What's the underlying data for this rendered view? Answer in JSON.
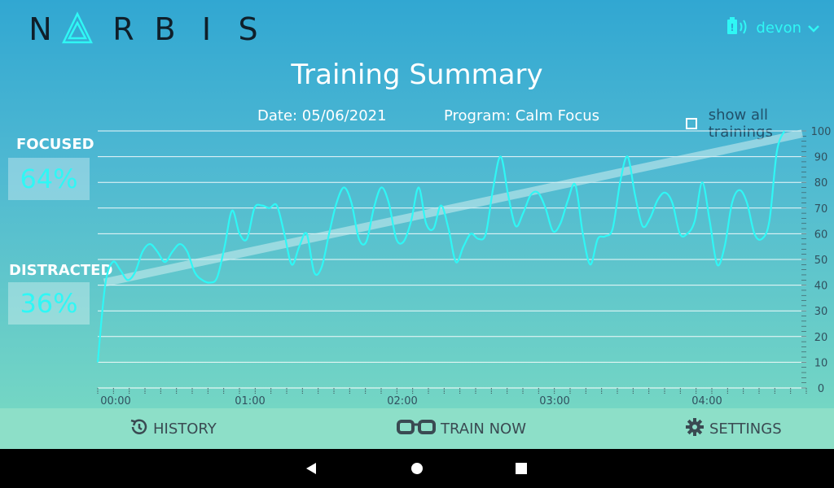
{
  "header": {
    "logo_letters": [
      "N",
      "Λ",
      "R",
      "B",
      "I",
      "S"
    ],
    "logo_text": "NΛRBIS",
    "username": "devon"
  },
  "title": "Training Summary",
  "meta": {
    "date": "Date: 05/06/2021",
    "program": "Program: Calm Focus",
    "show_all": "show all trainings",
    "show_all_checked": false
  },
  "stats": {
    "focused_label": "FOCUSED",
    "focused_value": "64%",
    "distracted_label": "DISTRACTED",
    "distracted_value": "36%"
  },
  "chart_data": {
    "type": "line",
    "y_ticks": [
      "100",
      "90",
      "80",
      "70",
      "60",
      "50",
      "40",
      "30",
      "20",
      "10",
      "0"
    ],
    "x_ticks": [
      "00:00",
      "01:00",
      "02:00",
      "03:00",
      "04:00"
    ],
    "ylim": [
      0,
      100
    ],
    "grid": true,
    "series": [
      {
        "values": [
          10,
          40,
          49,
          46,
          42,
          45,
          53,
          56,
          53,
          49,
          53,
          56,
          53,
          45,
          42,
          41,
          43,
          55,
          69,
          60,
          58,
          70,
          71,
          70,
          71,
          60,
          48,
          55,
          60,
          45,
          47,
          60,
          72,
          78,
          72,
          58,
          57,
          70,
          78,
          72,
          58,
          57,
          65,
          78,
          64,
          62,
          71,
          62,
          49,
          55,
          60,
          58,
          60,
          78,
          90,
          75,
          63,
          68,
          75,
          76,
          70,
          61,
          64,
          73,
          79,
          60,
          48,
          58,
          59,
          62,
          80,
          90,
          75,
          63,
          66,
          73,
          76,
          72,
          60,
          60,
          65,
          80,
          65,
          48,
          55,
          72,
          77,
          72,
          60,
          58,
          65,
          92,
          100
        ],
        "color": "#2ff7f5"
      },
      {
        "values": [
          41,
          99
        ],
        "color": "#cfeef0",
        "type": "trend"
      }
    ]
  },
  "nav": {
    "history": "HISTORY",
    "train": "TRAIN NOW",
    "settings": "SETTINGS"
  }
}
